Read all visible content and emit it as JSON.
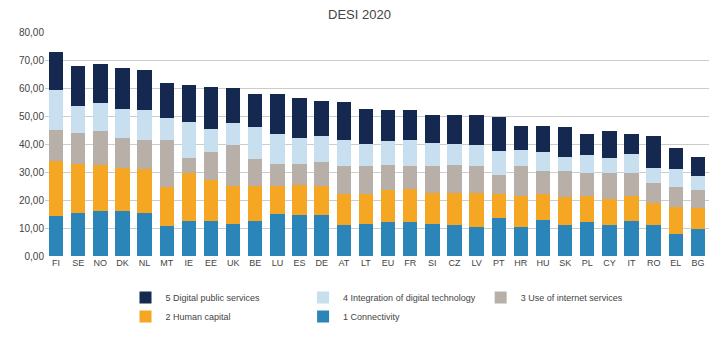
{
  "chart_data": {
    "type": "bar",
    "title": "DESI 2020",
    "stacked": true,
    "grid": true,
    "legend": "bottom",
    "categories": [
      "FI",
      "SE",
      "NO",
      "DK",
      "NL",
      "MT",
      "IE",
      "EE",
      "UK",
      "BE",
      "LU",
      "ES",
      "DE",
      "AT",
      "LT",
      "EU",
      "FR",
      "SI",
      "CZ",
      "LV",
      "PT",
      "HR",
      "HU",
      "SK",
      "PL",
      "CY",
      "IT",
      "RO",
      "EL",
      "BG"
    ],
    "series": [
      {
        "name": "1 Connectivity",
        "color": "#2b85b8",
        "values": [
          14.4,
          15.5,
          16.0,
          16.0,
          15.5,
          10.8,
          12.5,
          12.5,
          11.5,
          12.5,
          15.0,
          14.5,
          14.5,
          11.0,
          11.5,
          12.0,
          12.0,
          11.5,
          11.0,
          10.5,
          13.5,
          10.5,
          13.0,
          11.0,
          12.0,
          11.0,
          12.5,
          11.0,
          8.0,
          9.5
        ]
      },
      {
        "name": "2 Human capital",
        "color": "#f5a623",
        "values": [
          19.5,
          17.5,
          16.5,
          15.5,
          15.5,
          14.0,
          17.0,
          14.5,
          13.5,
          12.5,
          10.0,
          11.0,
          10.5,
          11.0,
          10.5,
          11.5,
          12.0,
          11.0,
          11.5,
          12.0,
          8.5,
          11.0,
          9.0,
          10.0,
          9.5,
          9.5,
          9.0,
          8.0,
          9.5,
          7.5
        ]
      },
      {
        "name": "3 Use of internet services",
        "color": "#b8b0a8",
        "values": [
          11.0,
          11.0,
          12.0,
          10.5,
          10.5,
          16.5,
          5.5,
          10.0,
          14.5,
          9.5,
          8.0,
          7.5,
          8.5,
          10.0,
          10.0,
          9.0,
          8.0,
          9.5,
          10.0,
          9.5,
          7.0,
          10.5,
          8.5,
          9.5,
          8.0,
          9.0,
          8.0,
          7.0,
          7.0,
          6.5
        ]
      },
      {
        "name": "4 Integration of digital technology",
        "color": "#c8dff0",
        "values": [
          14.5,
          9.5,
          10.0,
          10.5,
          10.5,
          8.0,
          13.0,
          8.5,
          8.0,
          11.5,
          10.5,
          9.0,
          9.5,
          9.5,
          8.0,
          8.5,
          9.5,
          8.5,
          7.5,
          7.5,
          8.5,
          6.0,
          6.5,
          5.0,
          6.5,
          5.5,
          7.0,
          5.5,
          6.5,
          5.0
        ]
      },
      {
        "name": "5 Digital public services",
        "color": "#152850",
        "values": [
          13.5,
          14.5,
          14.0,
          14.5,
          14.5,
          12.5,
          13.0,
          15.0,
          12.5,
          12.0,
          14.5,
          14.5,
          12.5,
          13.5,
          12.5,
          11.0,
          10.5,
          10.0,
          10.5,
          11.0,
          12.0,
          8.5,
          9.5,
          10.5,
          7.5,
          9.5,
          7.0,
          11.5,
          7.5,
          7.0
        ]
      }
    ],
    "ylim": [
      0,
      80
    ],
    "yticks": [
      {
        "value": 0,
        "label": "0,00"
      },
      {
        "value": 10,
        "label": "10,00"
      },
      {
        "value": 20,
        "label": "20,00"
      },
      {
        "value": 30,
        "label": "30,00"
      },
      {
        "value": 40,
        "label": "40,00"
      },
      {
        "value": 50,
        "label": "50,00"
      },
      {
        "value": 60,
        "label": "60,00"
      },
      {
        "value": 70,
        "label": "70,00"
      },
      {
        "value": 80,
        "label": "80,00"
      }
    ]
  }
}
